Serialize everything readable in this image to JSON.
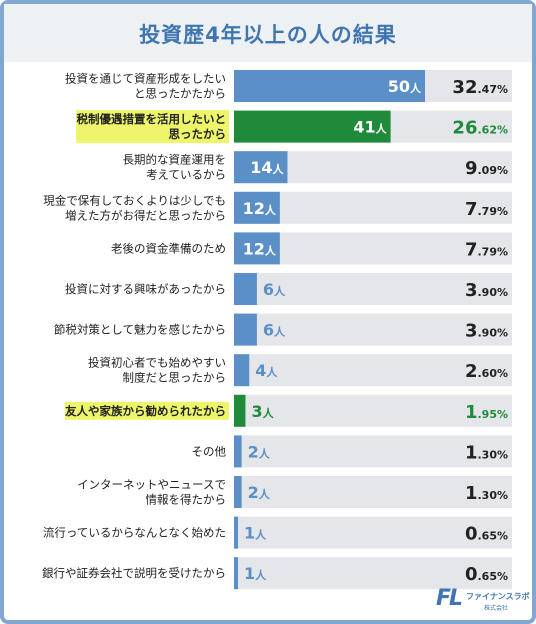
{
  "title": "投資歴4年以上の人の結果",
  "logo": {
    "name": "ファイナンスラボ",
    "sub": "株式会社",
    "mark": "FL"
  },
  "colors": {
    "bar": "#5b8fc7",
    "highlight_bar": "#1f8a3a",
    "track": "#e4e6e9",
    "label_highlight_bg": "#eef56a",
    "highlight_pct": "#1f8a3a"
  },
  "chart_data": {
    "type": "bar",
    "orientation": "horizontal",
    "categories": [
      [
        "投資を通じて資産形成をしたい",
        "と思ったかたから"
      ],
      [
        "税制優遇措置を活用したいと",
        "思ったから"
      ],
      [
        "長期的な資産運用を",
        "考えているから"
      ],
      [
        "現金で保有しておくよりは少しでも",
        "増えた方がお得だと思ったから"
      ],
      [
        "老後の資金準備のため"
      ],
      [
        "投資に対する興味があったから"
      ],
      [
        "節税対策として魅力を感じたから"
      ],
      [
        "投資初心者でも始めやすい",
        "制度だと思ったから"
      ],
      [
        "友人や家族から勧められたから"
      ],
      [
        "その他"
      ],
      [
        "インターネットやニュースで",
        "情報を得たから"
      ],
      [
        "流行っているからなんとなく始めた"
      ],
      [
        "銀行や証券会社で説明を受けたから"
      ]
    ],
    "values": [
      50,
      41,
      14,
      12,
      12,
      6,
      6,
      4,
      3,
      2,
      2,
      1,
      1
    ],
    "count_unit": "人",
    "percent_main": [
      "32",
      "26",
      "9",
      "7",
      "7",
      "3",
      "3",
      "2",
      "1",
      "1",
      "1",
      "0",
      "0"
    ],
    "percent_frac": [
      ".47%",
      ".62%",
      ".09%",
      ".79%",
      ".79%",
      ".90%",
      ".90%",
      ".60%",
      ".95%",
      ".30%",
      ".30%",
      ".65%",
      ".65%"
    ],
    "highlighted": [
      false,
      true,
      false,
      false,
      false,
      false,
      false,
      false,
      true,
      false,
      false,
      false,
      false
    ],
    "xlim": [
      0,
      50
    ]
  }
}
